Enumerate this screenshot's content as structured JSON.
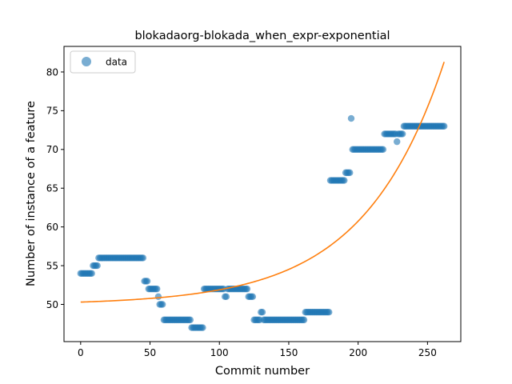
{
  "chart_data": {
    "type": "scatter",
    "title": "blokadaorg-blokada_when_expr-exponential",
    "xlabel": "Commit number",
    "ylabel": "Number of instance of a feature",
    "xlim": [
      -12,
      274
    ],
    "ylim": [
      45.2,
      83.3
    ],
    "xticks": [
      0,
      50,
      100,
      150,
      200,
      250
    ],
    "yticks": [
      50,
      55,
      60,
      65,
      70,
      75,
      80
    ],
    "legend": {
      "position": "top-left",
      "entries": [
        "data"
      ]
    },
    "colors": {
      "points": "#1f77b4",
      "fit": "#ff7f0e"
    },
    "series": [
      {
        "name": "data",
        "kind": "scatter",
        "segments": [
          {
            "x_start": 0,
            "x_end": 8,
            "y": 54
          },
          {
            "x_start": 9,
            "x_end": 12,
            "y": 55
          },
          {
            "x_start": 13,
            "x_end": 45,
            "y": 56
          },
          {
            "x_start": 46,
            "x_end": 48,
            "y": 53
          },
          {
            "x_start": 49,
            "x_end": 55,
            "y": 52
          },
          {
            "x_start": 56,
            "x_end": 56,
            "y": 51
          },
          {
            "x_start": 57,
            "x_end": 59,
            "y": 50
          },
          {
            "x_start": 60,
            "x_end": 79,
            "y": 48
          },
          {
            "x_start": 80,
            "x_end": 88,
            "y": 47
          },
          {
            "x_start": 89,
            "x_end": 103,
            "y": 52
          },
          {
            "x_start": 104,
            "x_end": 105,
            "y": 51
          },
          {
            "x_start": 106,
            "x_end": 120,
            "y": 52
          },
          {
            "x_start": 121,
            "x_end": 124,
            "y": 51
          },
          {
            "x_start": 125,
            "x_end": 129,
            "y": 48
          },
          {
            "x_start": 130,
            "x_end": 131,
            "y": 49
          },
          {
            "x_start": 132,
            "x_end": 161,
            "y": 48
          },
          {
            "x_start": 162,
            "x_end": 179,
            "y": 49
          },
          {
            "x_start": 180,
            "x_end": 190,
            "y": 66
          },
          {
            "x_start": 191,
            "x_end": 194,
            "y": 67
          },
          {
            "x_start": 195,
            "x_end": 195,
            "y": 74
          },
          {
            "x_start": 196,
            "x_end": 218,
            "y": 70
          },
          {
            "x_start": 219,
            "x_end": 227,
            "y": 72
          },
          {
            "x_start": 228,
            "x_end": 228,
            "y": 71
          },
          {
            "x_start": 229,
            "x_end": 232,
            "y": 72
          },
          {
            "x_start": 233,
            "x_end": 262,
            "y": 73
          }
        ]
      },
      {
        "name": "",
        "kind": "line",
        "model": "exponential",
        "x_range": [
          0,
          262
        ],
        "y_at_start": 50.3,
        "y_at_end": 81.3,
        "growth_rate": 0.0172
      }
    ]
  }
}
